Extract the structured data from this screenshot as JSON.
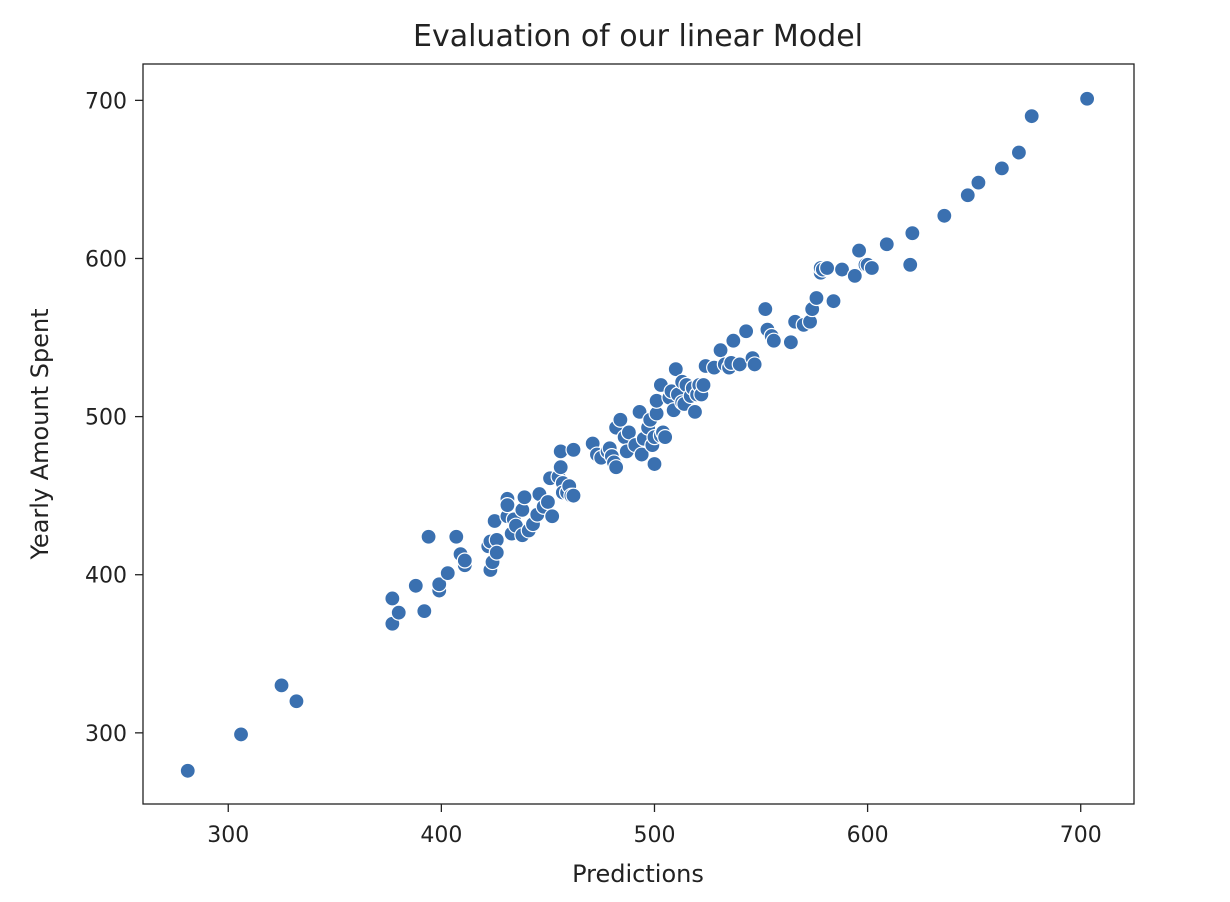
{
  "chart_data": {
    "type": "scatter",
    "title": "Evaluation of our linear Model",
    "xlabel": "Predictions",
    "ylabel": "Yearly Amount Spent",
    "xlim": [
      260,
      725
    ],
    "ylim": [
      255,
      723
    ],
    "xticks": [
      300,
      400,
      500,
      600,
      700
    ],
    "yticks": [
      300,
      400,
      500,
      600,
      700
    ],
    "grid": false,
    "marker_color": "#3a70b0",
    "points": [
      [
        281,
        276
      ],
      [
        306,
        299
      ],
      [
        325,
        330
      ],
      [
        332,
        320
      ],
      [
        377,
        369
      ],
      [
        377,
        385
      ],
      [
        380,
        376
      ],
      [
        388,
        393
      ],
      [
        392,
        377
      ],
      [
        394,
        424
      ],
      [
        399,
        390
      ],
      [
        399,
        394
      ],
      [
        403,
        401
      ],
      [
        407,
        424
      ],
      [
        409,
        413
      ],
      [
        411,
        406
      ],
      [
        411,
        409
      ],
      [
        422,
        418
      ],
      [
        423,
        403
      ],
      [
        423,
        421
      ],
      [
        424,
        408
      ],
      [
        425,
        434
      ],
      [
        426,
        422
      ],
      [
        426,
        414
      ],
      [
        431,
        437
      ],
      [
        431,
        448
      ],
      [
        431,
        444
      ],
      [
        433,
        426
      ],
      [
        434,
        435
      ],
      [
        435,
        431
      ],
      [
        438,
        425
      ],
      [
        438,
        441
      ],
      [
        439,
        449
      ],
      [
        441,
        428
      ],
      [
        443,
        432
      ],
      [
        445,
        438
      ],
      [
        446,
        451
      ],
      [
        448,
        443
      ],
      [
        450,
        446
      ],
      [
        451,
        461
      ],
      [
        452,
        437
      ],
      [
        455,
        462
      ],
      [
        456,
        478
      ],
      [
        456,
        468
      ],
      [
        457,
        458
      ],
      [
        457,
        452
      ],
      [
        459,
        452
      ],
      [
        460,
        456
      ],
      [
        461,
        450
      ],
      [
        462,
        479
      ],
      [
        462,
        450
      ],
      [
        471,
        483
      ],
      [
        473,
        476
      ],
      [
        475,
        474
      ],
      [
        478,
        478
      ],
      [
        479,
        480
      ],
      [
        480,
        475
      ],
      [
        481,
        471
      ],
      [
        482,
        468
      ],
      [
        482,
        493
      ],
      [
        484,
        498
      ],
      [
        486,
        487
      ],
      [
        487,
        478
      ],
      [
        488,
        490
      ],
      [
        491,
        482
      ],
      [
        493,
        503
      ],
      [
        494,
        476
      ],
      [
        495,
        486
      ],
      [
        497,
        493
      ],
      [
        498,
        498
      ],
      [
        499,
        482
      ],
      [
        500,
        470
      ],
      [
        500,
        487
      ],
      [
        501,
        502
      ],
      [
        501,
        510
      ],
      [
        503,
        488
      ],
      [
        503,
        520
      ],
      [
        504,
        490
      ],
      [
        505,
        487
      ],
      [
        507,
        512
      ],
      [
        508,
        516
      ],
      [
        509,
        504
      ],
      [
        510,
        530
      ],
      [
        511,
        514
      ],
      [
        513,
        509
      ],
      [
        513,
        522
      ],
      [
        514,
        508
      ],
      [
        515,
        520
      ],
      [
        517,
        513
      ],
      [
        518,
        518
      ],
      [
        519,
        503
      ],
      [
        520,
        514
      ],
      [
        521,
        520
      ],
      [
        522,
        514
      ],
      [
        523,
        520
      ],
      [
        524,
        532
      ],
      [
        528,
        531
      ],
      [
        531,
        542
      ],
      [
        533,
        533
      ],
      [
        535,
        531
      ],
      [
        536,
        534
      ],
      [
        537,
        548
      ],
      [
        540,
        533
      ],
      [
        543,
        554
      ],
      [
        546,
        537
      ],
      [
        547,
        533
      ],
      [
        552,
        568
      ],
      [
        553,
        555
      ],
      [
        555,
        551
      ],
      [
        556,
        548
      ],
      [
        564,
        547
      ],
      [
        566,
        560
      ],
      [
        570,
        558
      ],
      [
        573,
        560
      ],
      [
        574,
        568
      ],
      [
        576,
        575
      ],
      [
        578,
        591
      ],
      [
        578,
        594
      ],
      [
        579,
        593
      ],
      [
        581,
        594
      ],
      [
        584,
        573
      ],
      [
        588,
        593
      ],
      [
        594,
        589
      ],
      [
        596,
        605
      ],
      [
        599,
        596
      ],
      [
        600,
        596
      ],
      [
        602,
        594
      ],
      [
        609,
        609
      ],
      [
        620,
        596
      ],
      [
        621,
        616
      ],
      [
        636,
        627
      ],
      [
        647,
        640
      ],
      [
        652,
        648
      ],
      [
        663,
        657
      ],
      [
        671,
        667
      ],
      [
        677,
        690
      ],
      [
        703,
        701
      ]
    ]
  }
}
